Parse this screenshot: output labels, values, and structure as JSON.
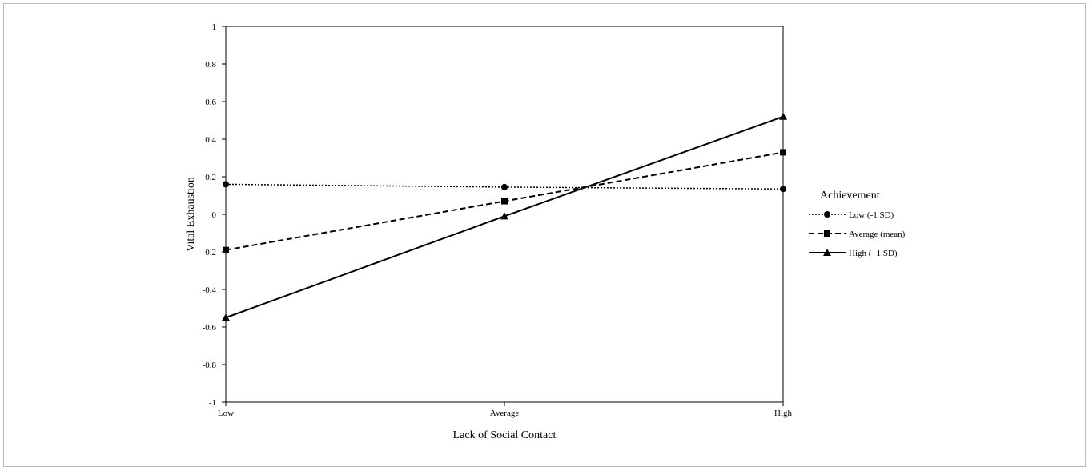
{
  "chart_data": {
    "type": "line",
    "title": "",
    "xlabel": "Lack of Social Contact",
    "ylabel": "Vital Exhaustion",
    "categories": [
      "Low",
      "Average",
      "High"
    ],
    "ylim": [
      -1,
      1
    ],
    "yticks": [
      1,
      0.8,
      0.6,
      0.4,
      0.2,
      0,
      -0.2,
      -0.4,
      -0.6,
      -0.8,
      -1
    ],
    "ytick_labels": [
      "1",
      "0.8",
      "0.6",
      "0.4",
      "0.2",
      "0",
      "-0.2",
      "-0.4",
      "-0.6",
      "-0.8",
      "-1"
    ],
    "grid": false,
    "legend": {
      "title": "Achievement",
      "placement": "right"
    },
    "series": [
      {
        "name": "Low (-1 SD)",
        "values": [
          0.16,
          0.145,
          0.135
        ],
        "style": "dotted",
        "marker": "circle"
      },
      {
        "name": "Average (mean)",
        "values": [
          -0.19,
          0.07,
          0.33
        ],
        "style": "dashed",
        "marker": "square"
      },
      {
        "name": "High (+1 SD)",
        "values": [
          -0.55,
          -0.01,
          0.52
        ],
        "style": "solid",
        "marker": "triangle"
      }
    ],
    "colors": {
      "line": "#000000",
      "frame": "#b9b9b9"
    }
  }
}
